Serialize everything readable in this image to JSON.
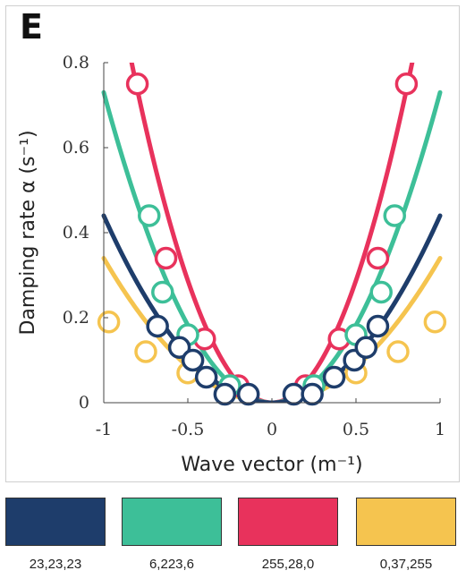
{
  "panel": {
    "letter": "E"
  },
  "chart_data": {
    "type": "scatter",
    "xlabel": "Wave vector (m⁻¹)",
    "ylabel": "Damping rate α (s⁻¹)",
    "xlim": [
      -1,
      1
    ],
    "ylim": [
      0,
      0.8
    ],
    "x_ticks": [
      "-1",
      "-0.5",
      "0",
      "0.5",
      "1"
    ],
    "y_ticks": [
      "0",
      "0.2",
      "0.4",
      "0.6",
      "0.8"
    ],
    "series": [
      {
        "color": "#f5c44f",
        "fit_coefficient": 0.34,
        "points": [
          [
            -0.97,
            0.19
          ],
          [
            -0.75,
            0.12
          ],
          [
            -0.5,
            0.07
          ],
          [
            -0.25,
            0.04
          ],
          [
            0.25,
            0.04
          ],
          [
            0.5,
            0.07
          ],
          [
            0.75,
            0.12
          ],
          [
            0.97,
            0.19
          ]
        ]
      },
      {
        "color": "#e8325c",
        "fit_coefficient": 1.15,
        "points": [
          [
            -0.8,
            0.75
          ],
          [
            -0.63,
            0.34
          ],
          [
            -0.4,
            0.15
          ],
          [
            -0.2,
            0.04
          ],
          [
            0.2,
            0.04
          ],
          [
            0.4,
            0.15
          ],
          [
            0.63,
            0.34
          ],
          [
            0.8,
            0.75
          ]
        ]
      },
      {
        "color": "#3dbf98",
        "fit_coefficient": 0.73,
        "points": [
          [
            -0.73,
            0.44
          ],
          [
            -0.65,
            0.26
          ],
          [
            -0.5,
            0.16
          ],
          [
            -0.25,
            0.04
          ],
          [
            0.25,
            0.04
          ],
          [
            0.5,
            0.16
          ],
          [
            0.65,
            0.26
          ],
          [
            0.73,
            0.44
          ]
        ]
      },
      {
        "color": "#1e3d6b",
        "fit_coefficient": 0.44,
        "points": [
          [
            -0.68,
            0.18
          ],
          [
            -0.55,
            0.13
          ],
          [
            -0.47,
            0.1
          ],
          [
            -0.39,
            0.06
          ],
          [
            -0.28,
            0.02
          ],
          [
            -0.14,
            0.02
          ],
          [
            0.13,
            0.02
          ],
          [
            0.24,
            0.02
          ],
          [
            0.37,
            0.06
          ],
          [
            0.49,
            0.1
          ],
          [
            0.56,
            0.13
          ],
          [
            0.63,
            0.18
          ]
        ]
      }
    ]
  },
  "swatches": [
    {
      "color": "#1e3d6b",
      "label": "23,23,23"
    },
    {
      "color": "#3dbf98",
      "label": "6,223,6"
    },
    {
      "color": "#e8325c",
      "label": "255,28,0"
    },
    {
      "color": "#f5c44f",
      "label": "0,37,255"
    }
  ]
}
